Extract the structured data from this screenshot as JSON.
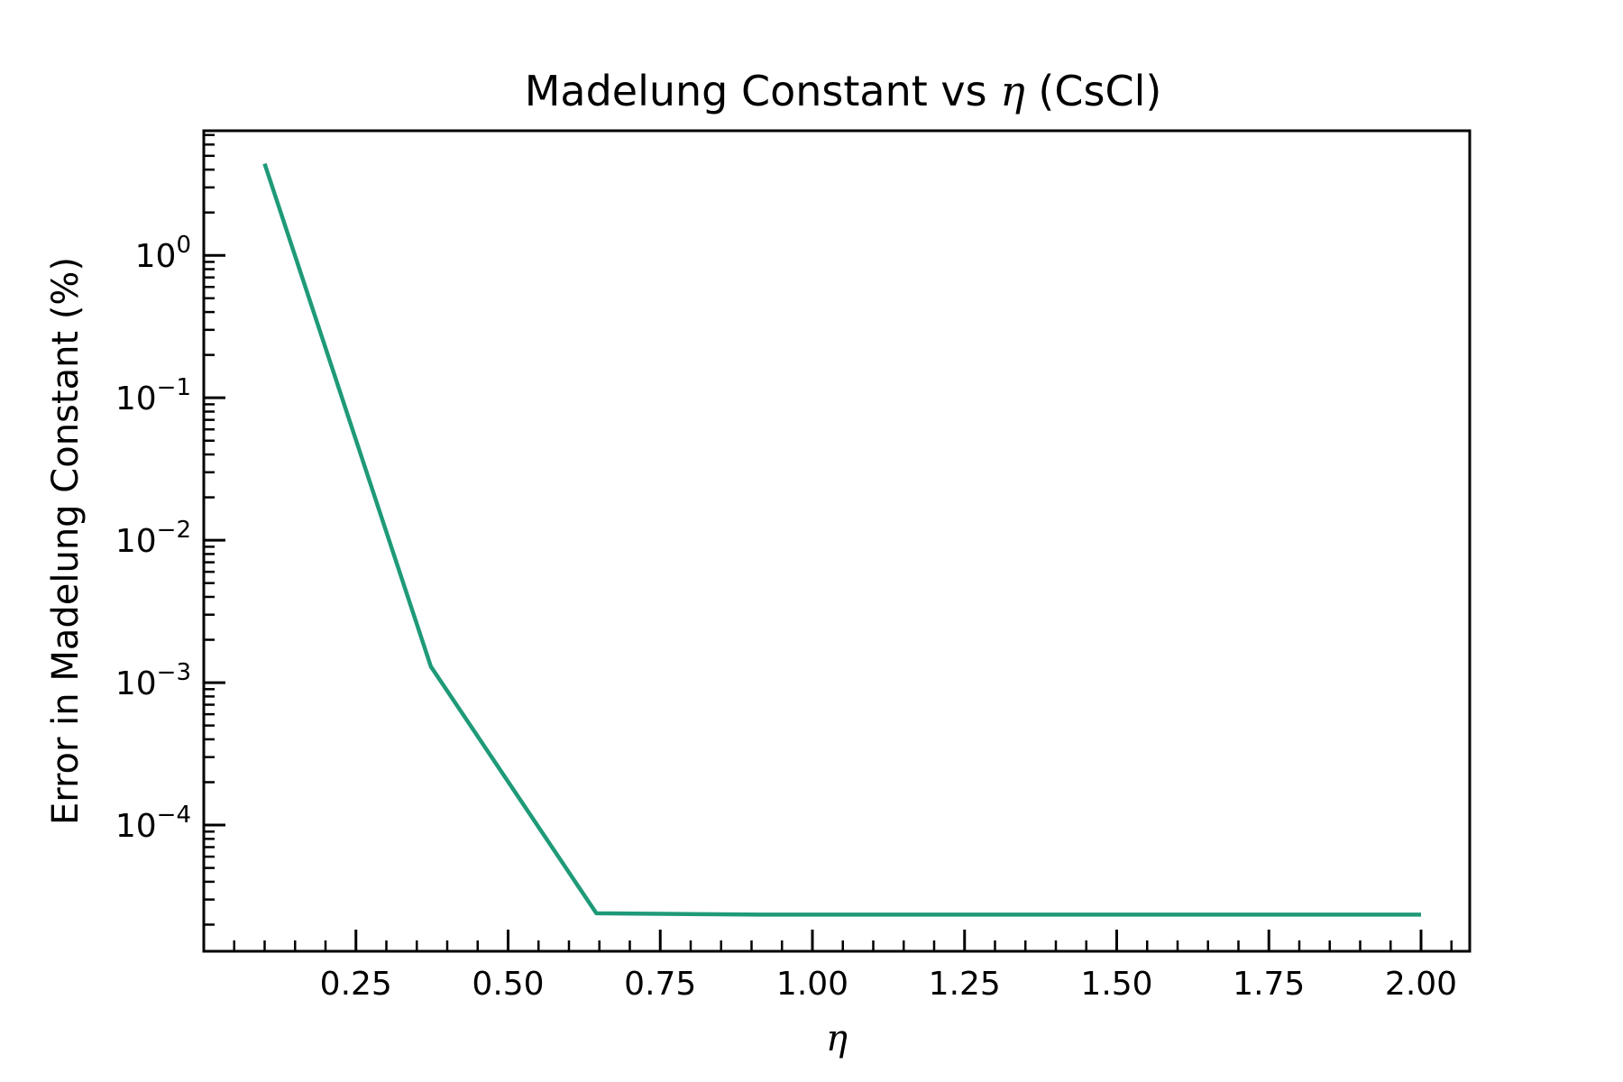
{
  "chart_data": {
    "type": "line",
    "title_prefix": "Madelung Constant vs ",
    "title_symbol": "η",
    "title_suffix": " (CsCl)",
    "xlabel": "η",
    "ylabel": "Error in Madelung Constant (%)",
    "xlim": [
      0.0,
      2.08
    ],
    "ylim": [
      1.3e-05,
      7.5
    ],
    "yscale": "log",
    "x_ticks": [
      0.25,
      0.5,
      0.75,
      1.0,
      1.25,
      1.5,
      1.75,
      2.0
    ],
    "x_tick_labels": [
      "0.25",
      "0.50",
      "0.75",
      "1.00",
      "1.25",
      "1.50",
      "1.75",
      "2.00"
    ],
    "y_ticks": [
      1,
      0.1,
      0.01,
      0.001,
      0.0001
    ],
    "y_tick_base": "10",
    "y_tick_exponents": [
      "0",
      "−1",
      "−2",
      "−3",
      "−4"
    ],
    "grid": false,
    "series": [
      {
        "color": "#1f9a78",
        "x": [
          0.1,
          0.373,
          0.645,
          0.918,
          1.191,
          1.464,
          1.736,
          2.0
        ],
        "y": [
          4.4,
          0.0013,
          2.4e-05,
          2.35e-05,
          2.35e-05,
          2.35e-05,
          2.35e-05,
          2.35e-05
        ]
      }
    ]
  }
}
